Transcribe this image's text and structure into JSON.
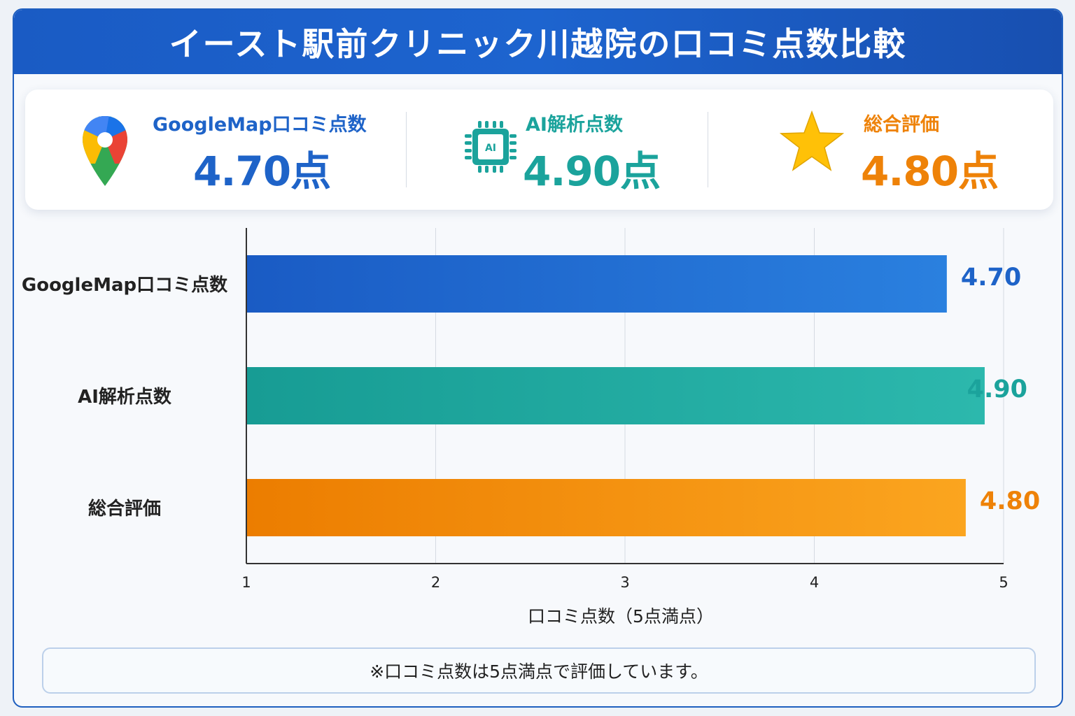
{
  "title": "イースト駅前クリニック川越院の口コミ点数比較",
  "summary": {
    "google": {
      "label": "GoogleMap口コミ点数",
      "value": "4.70点",
      "icon": "google-maps-pin-icon",
      "color": "#1e63c8"
    },
    "ai": {
      "label": "AI解析点数",
      "value": "4.90点",
      "icon": "ai-chip-icon",
      "chip_text": "AI",
      "color": "#1ba39c"
    },
    "overall": {
      "label": "総合評価",
      "value": "4.80点",
      "icon": "star-icon",
      "color": "#ee8208"
    }
  },
  "chart_data": {
    "type": "bar",
    "orientation": "horizontal",
    "categories": [
      "GoogleMap口コミ点数",
      "AI解析点数",
      "総合評価"
    ],
    "values": [
      4.7,
      4.9,
      4.8
    ],
    "value_labels": [
      "4.70",
      "4.90",
      "4.80"
    ],
    "colors": [
      "#1e63c8",
      "#1ba39c",
      "#ee8208"
    ],
    "xlim": [
      1,
      5
    ],
    "xticks": [
      "1",
      "2",
      "3",
      "4",
      "5"
    ],
    "xlabel": "口コミ点数（5点満点）",
    "grid": true
  },
  "note": "※口コミ点数は5点満点で評価しています。"
}
